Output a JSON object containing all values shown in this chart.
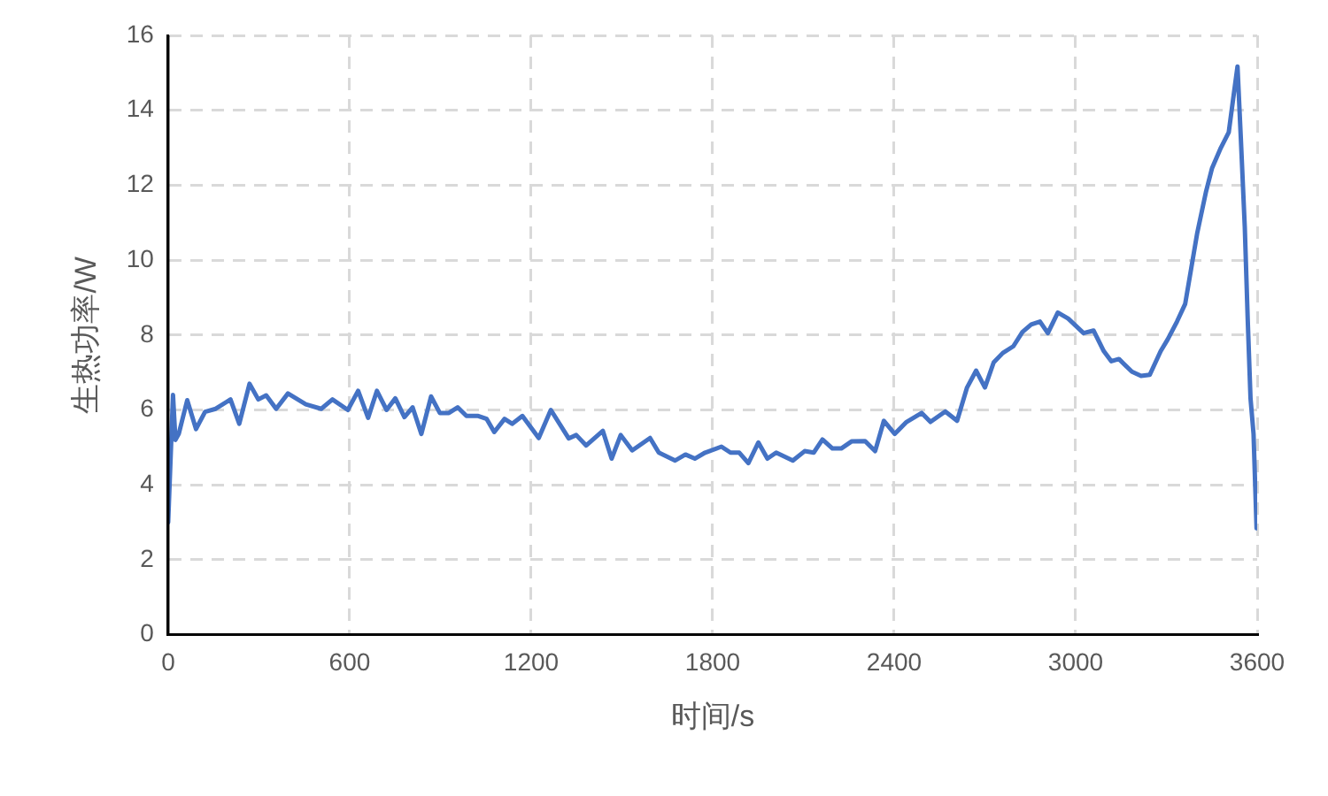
{
  "chart_data": {
    "type": "line",
    "xlabel": "时间/s",
    "ylabel": "生热功率/W",
    "x": [
      0,
      16,
      24,
      35,
      63,
      92,
      122,
      157,
      206,
      235,
      269,
      298,
      324,
      357,
      396,
      455,
      506,
      543,
      594,
      628,
      661,
      690,
      722,
      751,
      781,
      808,
      837,
      869,
      898,
      928,
      957,
      986,
      1025,
      1053,
      1078,
      1112,
      1137,
      1171,
      1225,
      1265,
      1324,
      1349,
      1382,
      1437,
      1466,
      1496,
      1534,
      1593,
      1622,
      1676,
      1710,
      1741,
      1775,
      1829,
      1859,
      1888,
      1918,
      1951,
      1981,
      2010,
      2065,
      2104,
      2134,
      2163,
      2196,
      2225,
      2259,
      2304,
      2337,
      2366,
      2402,
      2441,
      2491,
      2520,
      2569,
      2608,
      2641,
      2671,
      2700,
      2729,
      2759,
      2794,
      2824,
      2853,
      2882,
      2908,
      2941,
      2975,
      3026,
      3059,
      3093,
      3118,
      3143,
      3186,
      3216,
      3245,
      3281,
      3304,
      3335,
      3362,
      3382,
      3402,
      3431,
      3451,
      3480,
      3506,
      3524,
      3535,
      3546,
      3559,
      3569,
      3578,
      3588,
      3598
    ],
    "series": [
      {
        "color": "#4472c4",
        "values": [
          3.0,
          6.4,
          5.2,
          5.36,
          6.26,
          5.49,
          5.95,
          6.03,
          6.28,
          5.63,
          6.7,
          6.28,
          6.39,
          6.03,
          6.44,
          6.15,
          6.03,
          6.28,
          6.0,
          6.51,
          5.79,
          6.51,
          6.0,
          6.31,
          5.81,
          6.07,
          5.36,
          6.36,
          5.92,
          5.92,
          6.07,
          5.84,
          5.84,
          5.76,
          5.41,
          5.76,
          5.63,
          5.84,
          5.25,
          6.0,
          5.24,
          5.33,
          5.05,
          5.44,
          4.7,
          5.33,
          4.92,
          5.25,
          4.86,
          4.65,
          4.81,
          4.7,
          4.86,
          5.02,
          4.86,
          4.86,
          4.58,
          5.13,
          4.7,
          4.86,
          4.65,
          4.9,
          4.86,
          5.21,
          4.97,
          4.97,
          5.16,
          5.17,
          4.9,
          5.71,
          5.36,
          5.68,
          5.92,
          5.68,
          5.96,
          5.71,
          6.6,
          7.05,
          6.6,
          7.27,
          7.52,
          7.7,
          8.08,
          8.28,
          8.36,
          8.05,
          8.6,
          8.44,
          8.05,
          8.12,
          7.57,
          7.3,
          7.36,
          7.02,
          6.91,
          6.94,
          7.57,
          7.88,
          8.36,
          8.83,
          9.78,
          10.73,
          11.83,
          12.46,
          13.0,
          13.41,
          14.51,
          15.17,
          13.25,
          10.89,
          8.36,
          6.31,
          5.36,
          2.84
        ]
      }
    ],
    "xlim": [
      0,
      3600
    ],
    "xticks": [
      0,
      600,
      1200,
      1800,
      2400,
      3000,
      3600
    ],
    "ylim": [
      0,
      16
    ],
    "yticks": [
      0,
      2,
      4,
      6,
      8,
      10,
      12,
      14,
      16
    ],
    "grid": true,
    "legend": false,
    "marker": "none",
    "line_style": "solid"
  }
}
